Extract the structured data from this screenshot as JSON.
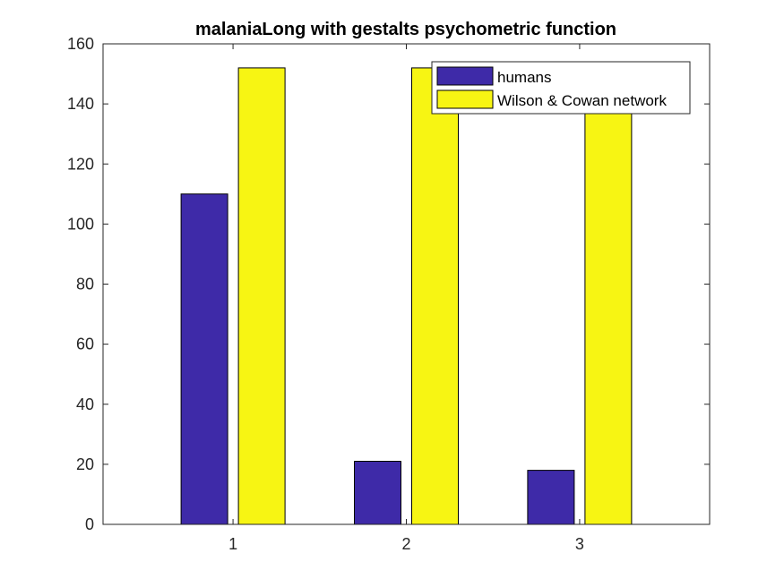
{
  "chart_data": {
    "type": "bar",
    "title": "malaniaLong with gestalts psychometric function",
    "xlabel": "",
    "ylabel": "",
    "categories": [
      "1",
      "2",
      "3"
    ],
    "ylim": [
      0,
      160
    ],
    "yticks": [
      0,
      20,
      40,
      60,
      80,
      100,
      120,
      140,
      160
    ],
    "grid": false,
    "legend_placement": "top-right",
    "series": [
      {
        "name": "humans",
        "values": [
          110,
          21,
          18
        ],
        "color": "#3e2aa8"
      },
      {
        "name": "Wilson & Cowan network",
        "values": [
          152,
          152,
          152
        ],
        "color": "#f7f513"
      }
    ]
  }
}
